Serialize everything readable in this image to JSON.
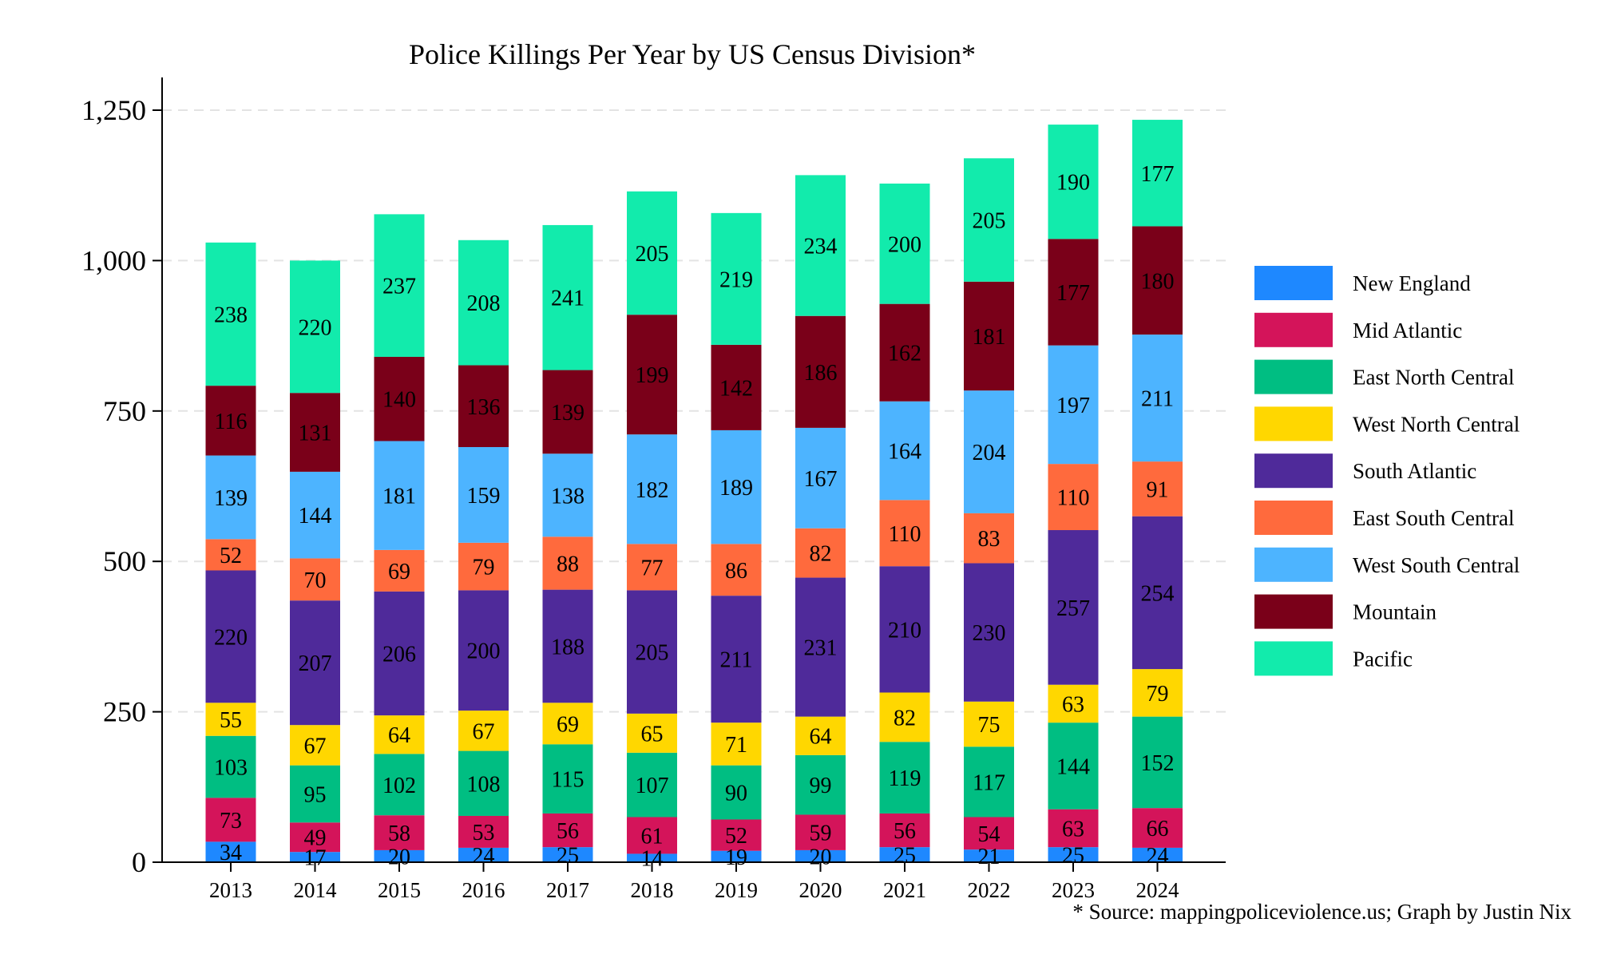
{
  "chart_data": {
    "type": "bar",
    "stacked": true,
    "title": "Police Killings Per Year by US Census Division*",
    "source_note": "* Source: mappingpoliceviolence.us; Graph by Justin Nix",
    "categories": [
      "2013",
      "2014",
      "2015",
      "2016",
      "2017",
      "2018",
      "2019",
      "2020",
      "2021",
      "2022",
      "2023",
      "2024"
    ],
    "ylim": [
      0,
      1300
    ],
    "yticks": [
      0,
      250,
      500,
      750,
      1000,
      1250
    ],
    "ytick_labels": [
      "0",
      "250",
      "500",
      "750",
      "1,000",
      "1,250"
    ],
    "grid": "horizontal dashed",
    "legend_position": "right",
    "series": [
      {
        "name": "New England",
        "color": "#1E88FF",
        "values": [
          34,
          17,
          20,
          24,
          25,
          14,
          19,
          20,
          25,
          21,
          25,
          24
        ]
      },
      {
        "name": "Mid Atlantic",
        "color": "#D4145A",
        "values": [
          73,
          49,
          58,
          53,
          56,
          61,
          52,
          59,
          56,
          54,
          63,
          66
        ]
      },
      {
        "name": "East North Central",
        "color": "#00BE82",
        "values": [
          103,
          95,
          102,
          108,
          115,
          107,
          90,
          99,
          119,
          117,
          144,
          152
        ]
      },
      {
        "name": "West North Central",
        "color": "#FFD700",
        "values": [
          55,
          67,
          64,
          67,
          69,
          65,
          71,
          64,
          82,
          75,
          63,
          79
        ]
      },
      {
        "name": "South Atlantic",
        "color": "#4F2A9A",
        "values": [
          220,
          207,
          206,
          200,
          188,
          205,
          211,
          231,
          210,
          230,
          257,
          254
        ]
      },
      {
        "name": "East South Central",
        "color": "#FF6A3D",
        "values": [
          52,
          70,
          69,
          79,
          88,
          77,
          86,
          82,
          110,
          83,
          110,
          91
        ]
      },
      {
        "name": "West South Central",
        "color": "#4DB4FF",
        "values": [
          139,
          144,
          181,
          159,
          138,
          182,
          189,
          167,
          164,
          204,
          197,
          211
        ]
      },
      {
        "name": "Mountain",
        "color": "#7A0019",
        "values": [
          116,
          131,
          140,
          136,
          139,
          199,
          142,
          186,
          162,
          181,
          177,
          180
        ]
      },
      {
        "name": "Pacific",
        "color": "#12EBAC",
        "values": [
          238,
          220,
          237,
          208,
          241,
          205,
          219,
          234,
          200,
          205,
          190,
          177
        ]
      }
    ]
  }
}
